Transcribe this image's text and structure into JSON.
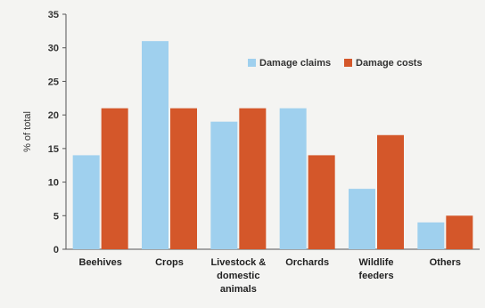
{
  "chart_data": {
    "type": "bar",
    "categories": [
      [
        "Beehives"
      ],
      [
        "Crops"
      ],
      [
        "Livestock &",
        "domestic",
        "animals"
      ],
      [
        "Orchards"
      ],
      [
        "Wildlife",
        "feeders"
      ],
      [
        "Others"
      ]
    ],
    "series": [
      {
        "name": "Damage claims",
        "color": "#9fd0ee",
        "values": [
          14,
          31,
          19,
          21,
          9,
          4
        ]
      },
      {
        "name": "Damage costs",
        "color": "#d4572a",
        "values": [
          21,
          21,
          21,
          14,
          17,
          5
        ]
      }
    ],
    "ylabel": "% of total",
    "xlabel": "",
    "ylim": [
      0,
      35
    ],
    "yticks": [
      0,
      5,
      10,
      15,
      20,
      25,
      30,
      35
    ],
    "grid": false,
    "legend_position": "top-right"
  }
}
